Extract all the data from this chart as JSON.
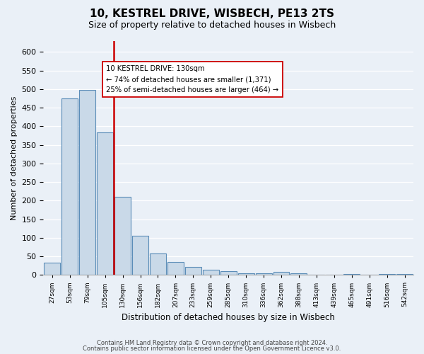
{
  "title": "10, KESTREL DRIVE, WISBECH, PE13 2TS",
  "subtitle": "Size of property relative to detached houses in Wisbech",
  "xlabel": "Distribution of detached houses by size in Wisbech",
  "ylabel": "Number of detached properties",
  "bar_labels": [
    "27sqm",
    "53sqm",
    "79sqm",
    "105sqm",
    "130sqm",
    "156sqm",
    "182sqm",
    "207sqm",
    "233sqm",
    "259sqm",
    "285sqm",
    "310sqm",
    "336sqm",
    "362sqm",
    "388sqm",
    "413sqm",
    "439sqm",
    "465sqm",
    "491sqm",
    "516sqm",
    "542sqm"
  ],
  "bar_values": [
    32,
    475,
    498,
    383,
    210,
    105,
    57,
    35,
    21,
    13,
    10,
    5,
    5,
    8,
    5,
    0,
    0,
    3,
    0,
    2,
    2
  ],
  "bar_color": "#c9d9e8",
  "bar_edge_color": "#5b8db8",
  "vline_index": 4,
  "vline_color": "#cc0000",
  "annotation_text": "10 KESTREL DRIVE: 130sqm\n← 74% of detached houses are smaller (1,371)\n25% of semi-detached houses are larger (464) →",
  "annotation_box_color": "#ffffff",
  "annotation_box_edge": "#cc0000",
  "ylim": [
    0,
    630
  ],
  "yticks": [
    0,
    50,
    100,
    150,
    200,
    250,
    300,
    350,
    400,
    450,
    500,
    550,
    600
  ],
  "footer_line1": "Contains HM Land Registry data © Crown copyright and database right 2024.",
  "footer_line2": "Contains public sector information licensed under the Open Government Licence v3.0.",
  "background_color": "#eaf0f7",
  "plot_bg_color": "#eaf0f7"
}
